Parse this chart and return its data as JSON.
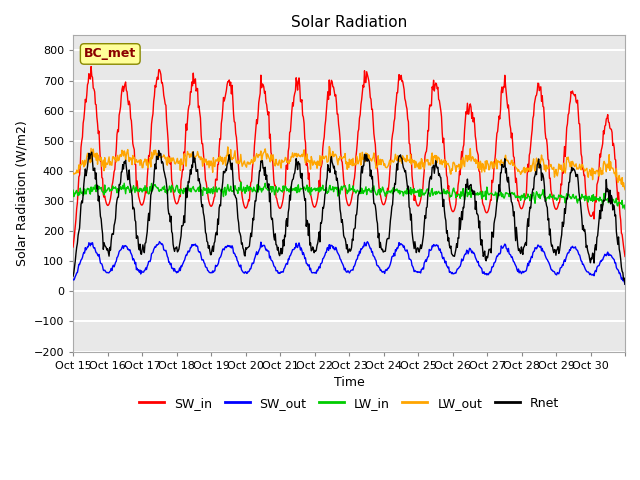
{
  "title": "Solar Radiation",
  "xlabel": "Time",
  "ylabel": "Solar Radiation (W/m2)",
  "ylim": [
    -200,
    850
  ],
  "yticks": [
    -200,
    -100,
    0,
    100,
    200,
    300,
    400,
    500,
    600,
    700,
    800
  ],
  "x_tick_labels": [
    "Oct 15",
    "Oct 16",
    "Oct 17",
    "Oct 18",
    "Oct 19",
    "Oct 20",
    "Oct 21",
    "Oct 22",
    "Oct 23",
    "Oct 24",
    "Oct 25",
    "Oct 26",
    "Oct 27",
    "Oct 28",
    "Oct 29",
    "Oct 30",
    ""
  ],
  "num_days": 16,
  "points_per_day": 48,
  "annotation_text": "BC_met",
  "annotation_color": "#8B0000",
  "annotation_bg": "#FFFF99",
  "colors": {
    "SW_in": "#FF0000",
    "SW_out": "#0000FF",
    "LW_in": "#00CC00",
    "LW_out": "#FFA500",
    "Rnet": "#000000"
  },
  "legend_labels": [
    "SW_in",
    "SW_out",
    "LW_in",
    "LW_out",
    "Rnet"
  ],
  "background_color": "#E8E8E8",
  "grid_color": "#FFFFFF",
  "sw_in_peaks": [
    725,
    680,
    730,
    700,
    690,
    670,
    685,
    690,
    710,
    705,
    690,
    615,
    670,
    680,
    660,
    570
  ],
  "lw_out_baseline": 330,
  "lw_in_baseline": 300
}
